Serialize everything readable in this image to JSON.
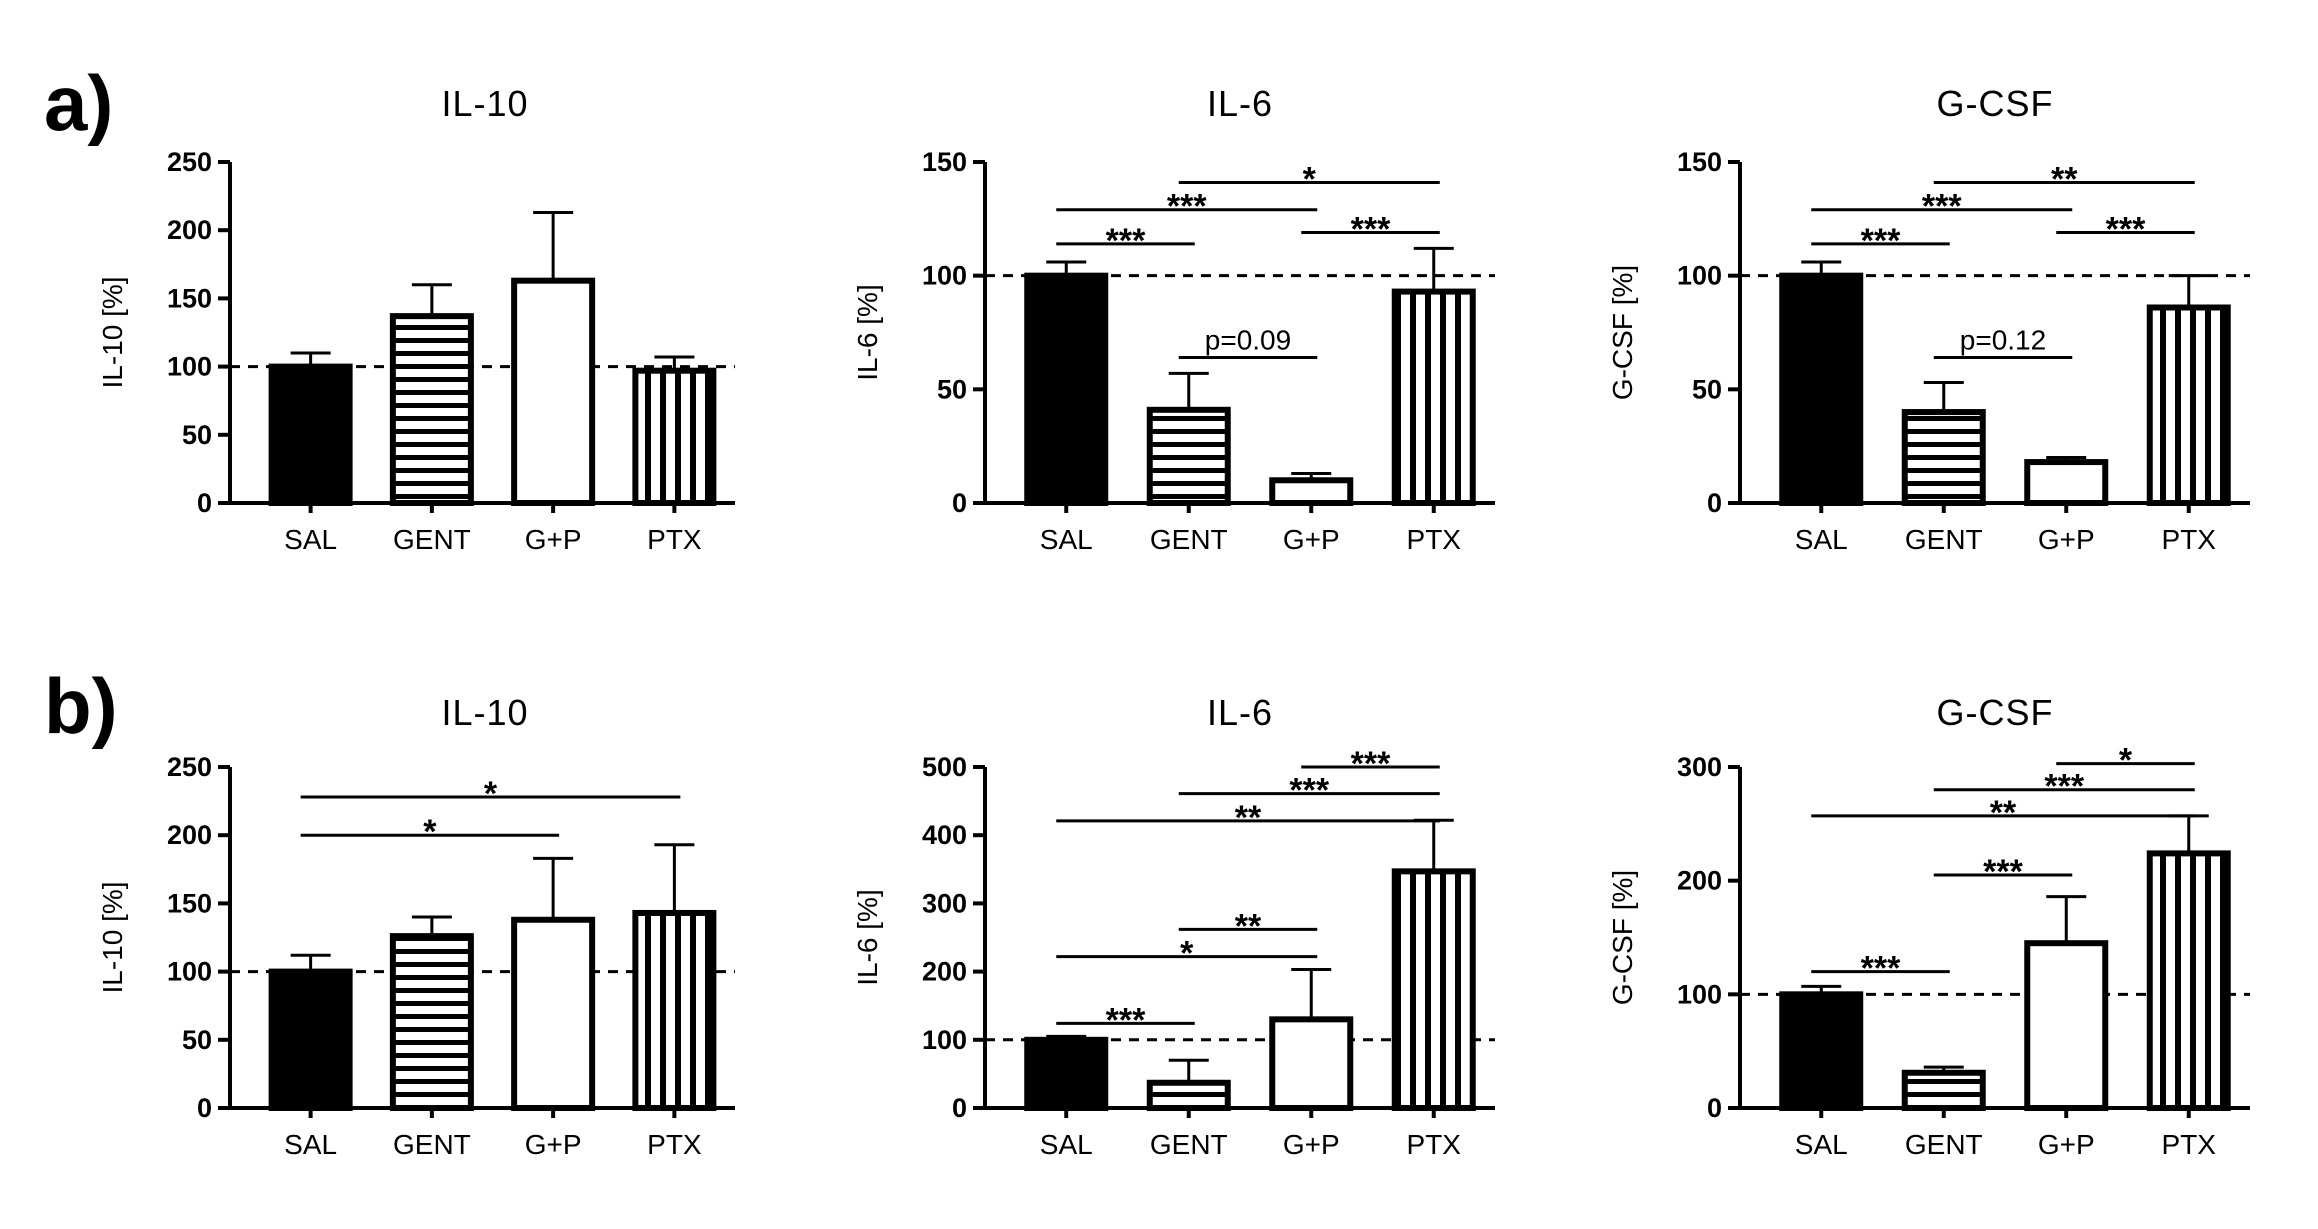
{
  "panel_labels": [
    "a)",
    "b)"
  ],
  "chart_data": [
    {
      "type": "bar",
      "panel": "a)",
      "title": "IL-10",
      "ylabel": "IL-10 [%]",
      "categories": [
        "SAL",
        "GENT",
        "G+P",
        "PTX"
      ],
      "values": [
        100,
        137,
        163,
        97
      ],
      "errors": [
        10,
        23,
        50,
        10
      ],
      "ylim": [
        0,
        250
      ],
      "yticks": [
        0,
        50,
        100,
        150,
        200,
        250
      ],
      "reference_line": 100,
      "fills": [
        "solid",
        "hlines",
        "open",
        "vlines"
      ],
      "annotations": []
    },
    {
      "type": "bar",
      "panel": "a)",
      "title": "IL-6",
      "ylabel": "IL-6 [%]",
      "categories": [
        "SAL",
        "GENT",
        "G+P",
        "PTX"
      ],
      "values": [
        100,
        41,
        10,
        93
      ],
      "errors": [
        6,
        16,
        3,
        19
      ],
      "ylim": [
        0,
        150
      ],
      "yticks": [
        0,
        50,
        100,
        150
      ],
      "reference_line": 100,
      "fills": [
        "solid",
        "hlines",
        "open",
        "vlines"
      ],
      "annotations": [
        {
          "from": 0,
          "to": 1,
          "y": 114,
          "label": "***"
        },
        {
          "from": 0,
          "to": 2,
          "y": 129,
          "label": "***"
        },
        {
          "from": 1,
          "to": 3,
          "y": 141,
          "label": "*"
        },
        {
          "from": 2,
          "to": 3,
          "y": 119,
          "label": "***"
        },
        {
          "from": 1,
          "to": 2,
          "y": 64,
          "label": "p=0.09"
        }
      ]
    },
    {
      "type": "bar",
      "panel": "a)",
      "title": "G-CSF",
      "ylabel": "G-CSF [%]",
      "categories": [
        "SAL",
        "GENT",
        "G+P",
        "PTX"
      ],
      "values": [
        100,
        40,
        18,
        86
      ],
      "errors": [
        6,
        13,
        2,
        14
      ],
      "ylim": [
        0,
        150
      ],
      "yticks": [
        0,
        50,
        100,
        150
      ],
      "reference_line": 100,
      "fills": [
        "solid",
        "hlines",
        "open",
        "vlines"
      ],
      "annotations": [
        {
          "from": 0,
          "to": 1,
          "y": 114,
          "label": "***"
        },
        {
          "from": 0,
          "to": 2,
          "y": 129,
          "label": "***"
        },
        {
          "from": 1,
          "to": 3,
          "y": 141,
          "label": "**"
        },
        {
          "from": 2,
          "to": 3,
          "y": 119,
          "label": "***"
        },
        {
          "from": 1,
          "to": 2,
          "y": 64,
          "label": "p=0.12"
        }
      ]
    },
    {
      "type": "bar",
      "panel": "b)",
      "title": "IL-10",
      "ylabel": "IL-10 [%]",
      "categories": [
        "SAL",
        "GENT",
        "G+P",
        "PTX"
      ],
      "values": [
        100,
        126,
        138,
        143
      ],
      "errors": [
        12,
        14,
        45,
        50
      ],
      "ylim": [
        0,
        250
      ],
      "yticks": [
        0,
        50,
        100,
        150,
        200,
        250
      ],
      "reference_line": 100,
      "fills": [
        "solid",
        "hlines",
        "open",
        "vlines"
      ],
      "annotations": [
        {
          "from": 0,
          "to": 2,
          "y": 200,
          "label": "*"
        },
        {
          "from": 0,
          "to": 3,
          "y": 228,
          "label": "*"
        }
      ]
    },
    {
      "type": "bar",
      "panel": "b)",
      "title": "IL-6",
      "ylabel": "IL-6 [%]",
      "categories": [
        "SAL",
        "GENT",
        "G+P",
        "PTX"
      ],
      "values": [
        100,
        37,
        130,
        347
      ],
      "errors": [
        5,
        33,
        73,
        75
      ],
      "ylim": [
        0,
        500
      ],
      "yticks": [
        0,
        100,
        200,
        300,
        400,
        500
      ],
      "reference_line": 100,
      "fills": [
        "solid",
        "hlines",
        "open",
        "vlines"
      ],
      "annotations": [
        {
          "from": 0,
          "to": 1,
          "y": 124,
          "label": "***"
        },
        {
          "from": 0,
          "to": 2,
          "y": 222,
          "label": "*"
        },
        {
          "from": 1,
          "to": 2,
          "y": 262,
          "label": "**"
        },
        {
          "from": 0,
          "to": 3,
          "y": 421,
          "label": "**"
        },
        {
          "from": 1,
          "to": 3,
          "y": 461,
          "label": "***"
        },
        {
          "from": 2,
          "to": 3,
          "y": 500,
          "label": "***"
        }
      ]
    },
    {
      "type": "bar",
      "panel": "b)",
      "title": "G-CSF",
      "ylabel": "G-CSF [%]",
      "categories": [
        "SAL",
        "GENT",
        "G+P",
        "PTX"
      ],
      "values": [
        100,
        31,
        145,
        224
      ],
      "errors": [
        7,
        5,
        41,
        33
      ],
      "ylim": [
        0,
        300
      ],
      "yticks": [
        0,
        100,
        200,
        300
      ],
      "reference_line": 100,
      "fills": [
        "solid",
        "hlines",
        "open",
        "vlines"
      ],
      "annotations": [
        {
          "from": 0,
          "to": 1,
          "y": 120,
          "label": "***"
        },
        {
          "from": 1,
          "to": 2,
          "y": 205,
          "label": "***"
        },
        {
          "from": 0,
          "to": 3,
          "y": 257,
          "label": "**"
        },
        {
          "from": 1,
          "to": 3,
          "y": 280,
          "label": "***"
        },
        {
          "from": 2,
          "to": 3,
          "y": 303,
          "label": "*"
        }
      ]
    }
  ]
}
